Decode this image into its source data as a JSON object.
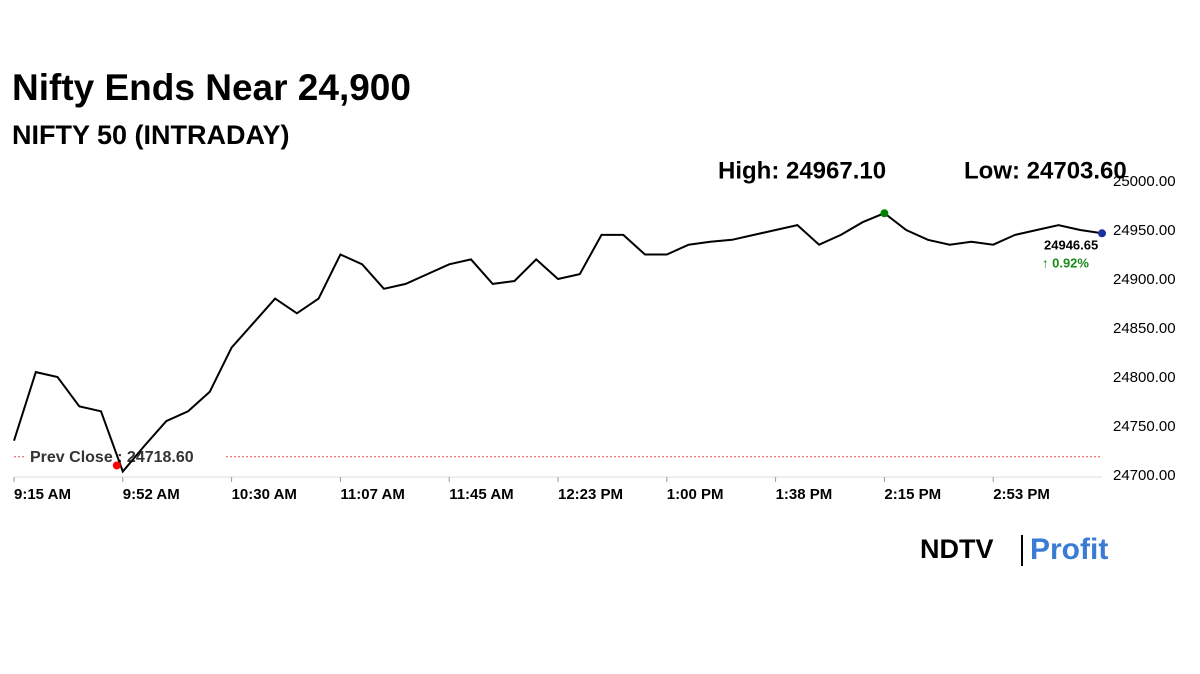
{
  "chart_data": {
    "type": "line",
    "title": "Nifty Ends Near 24,900",
    "subtitle": "NIFTY 50 (INTRADAY)",
    "high_label": "High: 24967.10",
    "low_label": "Low: 24703.60",
    "prev_close": 24718.6,
    "prev_close_label": "Prev Close : 24718.60",
    "last_label": "24946.65",
    "change_label": "↑ 0.92%",
    "brand": "NDTV",
    "brand_suffix": "Profit",
    "categories": [
      "9:15 AM",
      null,
      null,
      null,
      null,
      "9:52 AM",
      null,
      null,
      null,
      null,
      "10:30 AM",
      null,
      null,
      null,
      null,
      "11:07 AM",
      null,
      null,
      null,
      null,
      "11:45 AM",
      null,
      null,
      null,
      null,
      "12:23 PM",
      null,
      null,
      null,
      null,
      "1:00 PM",
      null,
      null,
      null,
      null,
      "1:38 PM",
      null,
      null,
      null,
      null,
      "2:15 PM",
      null,
      null,
      null,
      null,
      "2:53 PM",
      null,
      null,
      null,
      null,
      null
    ],
    "series": [
      {
        "color": "#000000",
        "values": [
          24735,
          24805,
          24800,
          24770,
          24765,
          24703.6,
          24730,
          24755,
          24765,
          24785,
          24830,
          24855,
          24880,
          24865,
          24880,
          24925,
          24915,
          24890,
          24895,
          24905,
          24915,
          24920,
          24895,
          24898,
          24920,
          24900,
          24905,
          24945,
          24945,
          24925,
          24925,
          24935,
          24938,
          24940,
          24945,
          24950,
          24955,
          24935,
          24945,
          24958,
          24967.1,
          24950,
          24940,
          24935,
          24938,
          24935,
          24945,
          24950,
          24955,
          24950,
          24946.65
        ]
      }
    ],
    "high_index": 40,
    "low_index": 5,
    "ylim": [
      24700,
      25000
    ],
    "yticks": [
      {
        "value": 24700,
        "label": "24700.00"
      },
      {
        "value": 24750,
        "label": "24750.00"
      },
      {
        "value": 24800,
        "label": "24800.00"
      },
      {
        "value": 24850,
        "label": "24850.00"
      },
      {
        "value": 24900,
        "label": "24900.00"
      },
      {
        "value": 24950,
        "label": "24950.00"
      },
      {
        "value": 25000,
        "label": "25000.00"
      }
    ]
  }
}
